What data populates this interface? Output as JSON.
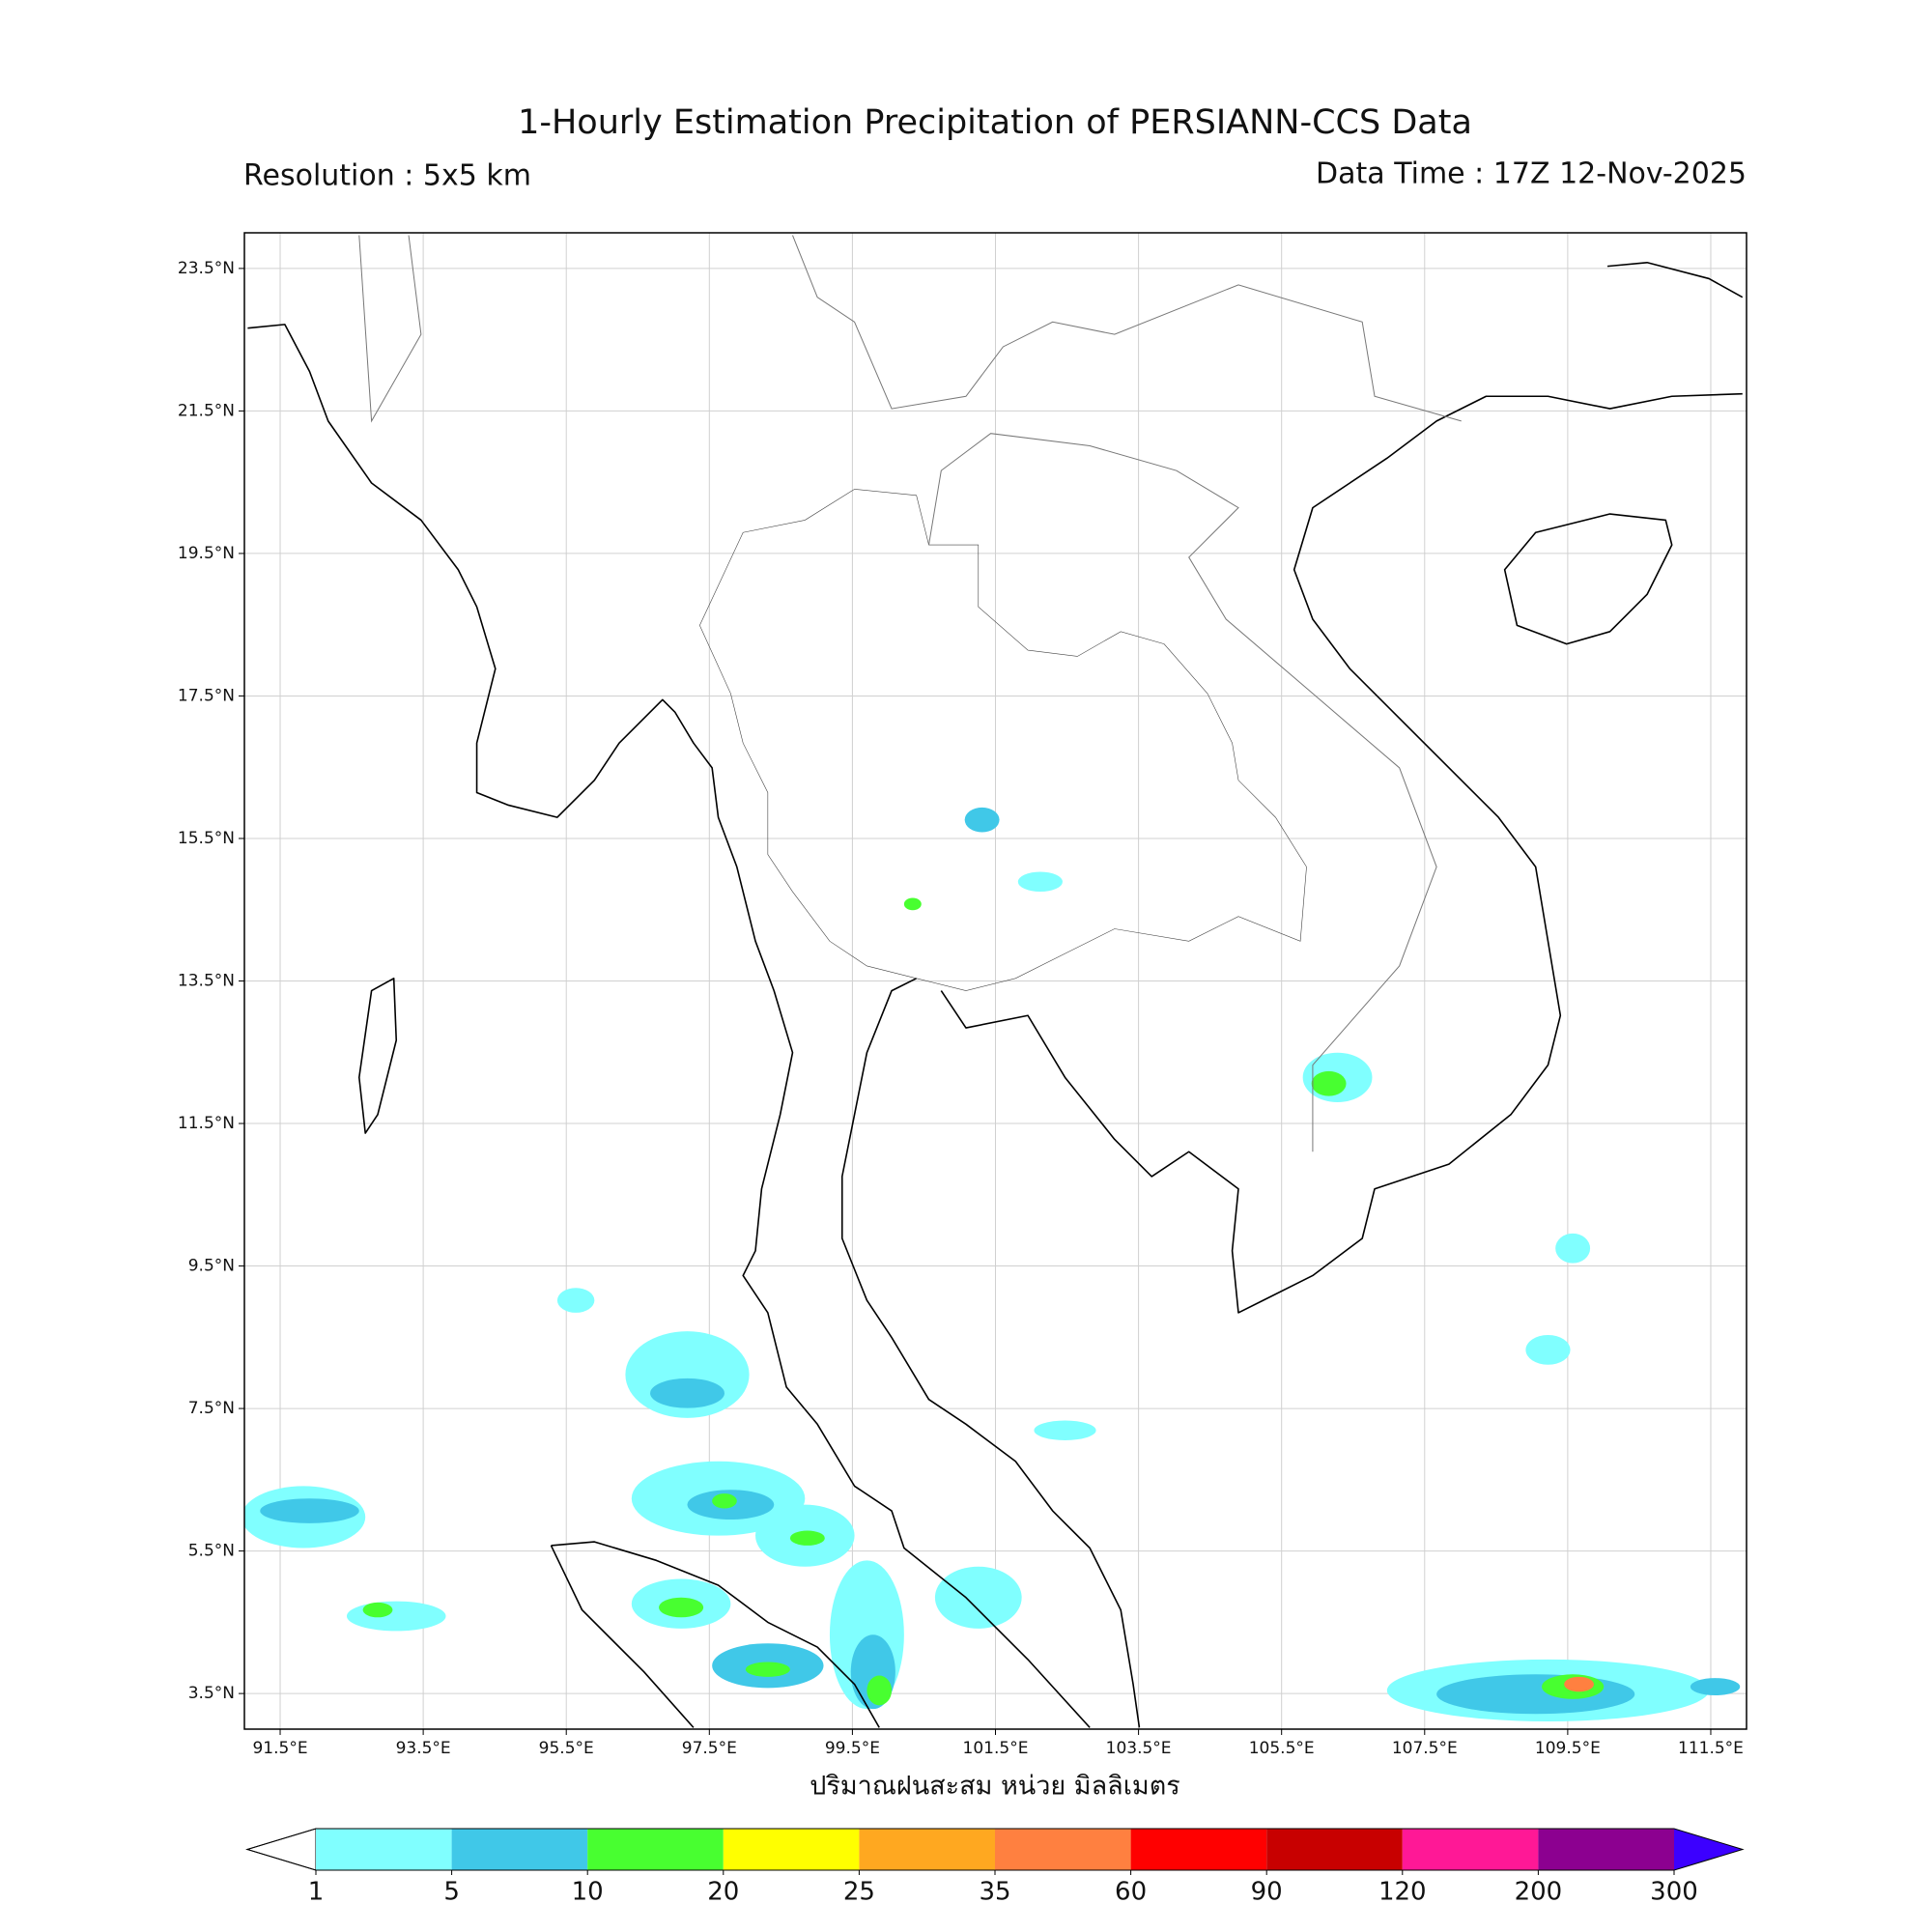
{
  "chart_data": {
    "type": "map",
    "title": "1-Hourly Estimation Precipitation of PERSIANN-CCS Data",
    "subtitle_left": "Resolution : 5x5 km",
    "subtitle_right": "Data Time : 17Z 12-Nov-2025",
    "xlabel": "ปริมาณฝนสะสม หน่วย มิลลิเมตร",
    "xlim": [
      91.0,
      112.0
    ],
    "ylim": [
      3.0,
      24.0
    ],
    "grid": true,
    "xticks": [
      {
        "value": 91.5,
        "label": "91.5°E"
      },
      {
        "value": 93.5,
        "label": "93.5°E"
      },
      {
        "value": 95.5,
        "label": "95.5°E"
      },
      {
        "value": 97.5,
        "label": "97.5°E"
      },
      {
        "value": 99.5,
        "label": "99.5°E"
      },
      {
        "value": 101.5,
        "label": "101.5°E"
      },
      {
        "value": 103.5,
        "label": "103.5°E"
      },
      {
        "value": 105.5,
        "label": "105.5°E"
      },
      {
        "value": 107.5,
        "label": "107.5°E"
      },
      {
        "value": 109.5,
        "label": "109.5°E"
      },
      {
        "value": 111.5,
        "label": "111.5°E"
      }
    ],
    "yticks": [
      {
        "value": 23.5,
        "label": "23.5°N"
      },
      {
        "value": 21.5,
        "label": "21.5°N"
      },
      {
        "value": 19.5,
        "label": "19.5°N"
      },
      {
        "value": 17.5,
        "label": "17.5°N"
      },
      {
        "value": 15.5,
        "label": "15.5°N"
      },
      {
        "value": 13.5,
        "label": "13.5°N"
      },
      {
        "value": 11.5,
        "label": "11.5°N"
      },
      {
        "value": 9.5,
        "label": "9.5°N"
      },
      {
        "value": 7.5,
        "label": "7.5°N"
      },
      {
        "value": 5.5,
        "label": "5.5°N"
      },
      {
        "value": 3.5,
        "label": "3.5°N"
      }
    ],
    "colorbar": {
      "levels": [
        1,
        5,
        10,
        20,
        25,
        35,
        60,
        90,
        120,
        200,
        300
      ],
      "colors": [
        "#80ffff",
        "#40c8e8",
        "#48ff30",
        "#ffff00",
        "#ffa820",
        "#ff8040",
        "#ff0000",
        "#c80000",
        "#ff1896",
        "#8c0090"
      ],
      "under_color": "#ffffff",
      "over_color": "#3c00ff"
    }
  }
}
